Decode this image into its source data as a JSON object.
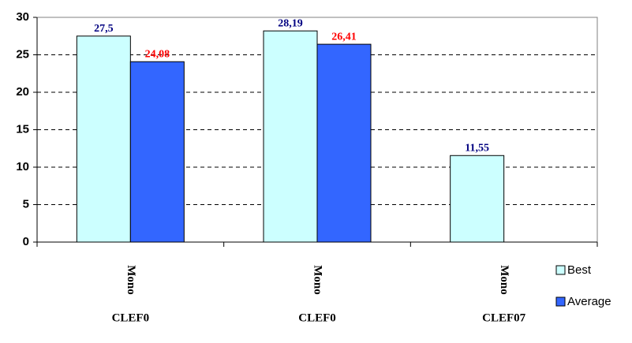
{
  "chart_data": {
    "type": "bar",
    "categories": [
      "Mono",
      "Mono",
      "Mono"
    ],
    "groups": [
      "CLEF0",
      "CLEF0",
      "CLEF07"
    ],
    "series": [
      {
        "name": "Best",
        "color": "#ccffff",
        "label_color": "#000080",
        "values": [
          27.5,
          28.19,
          11.55
        ],
        "value_labels": [
          "27,5",
          "28,19",
          "11,55"
        ]
      },
      {
        "name": "Average",
        "color": "#3366ff",
        "label_color": "#ff0000",
        "values": [
          24.08,
          26.41,
          null
        ],
        "value_labels": [
          "24,08",
          "26,41",
          null
        ]
      }
    ],
    "ylim": [
      0,
      30
    ],
    "yticks": [
      0,
      5,
      10,
      15,
      20,
      25,
      30
    ],
    "grid": true,
    "legend": "right"
  }
}
